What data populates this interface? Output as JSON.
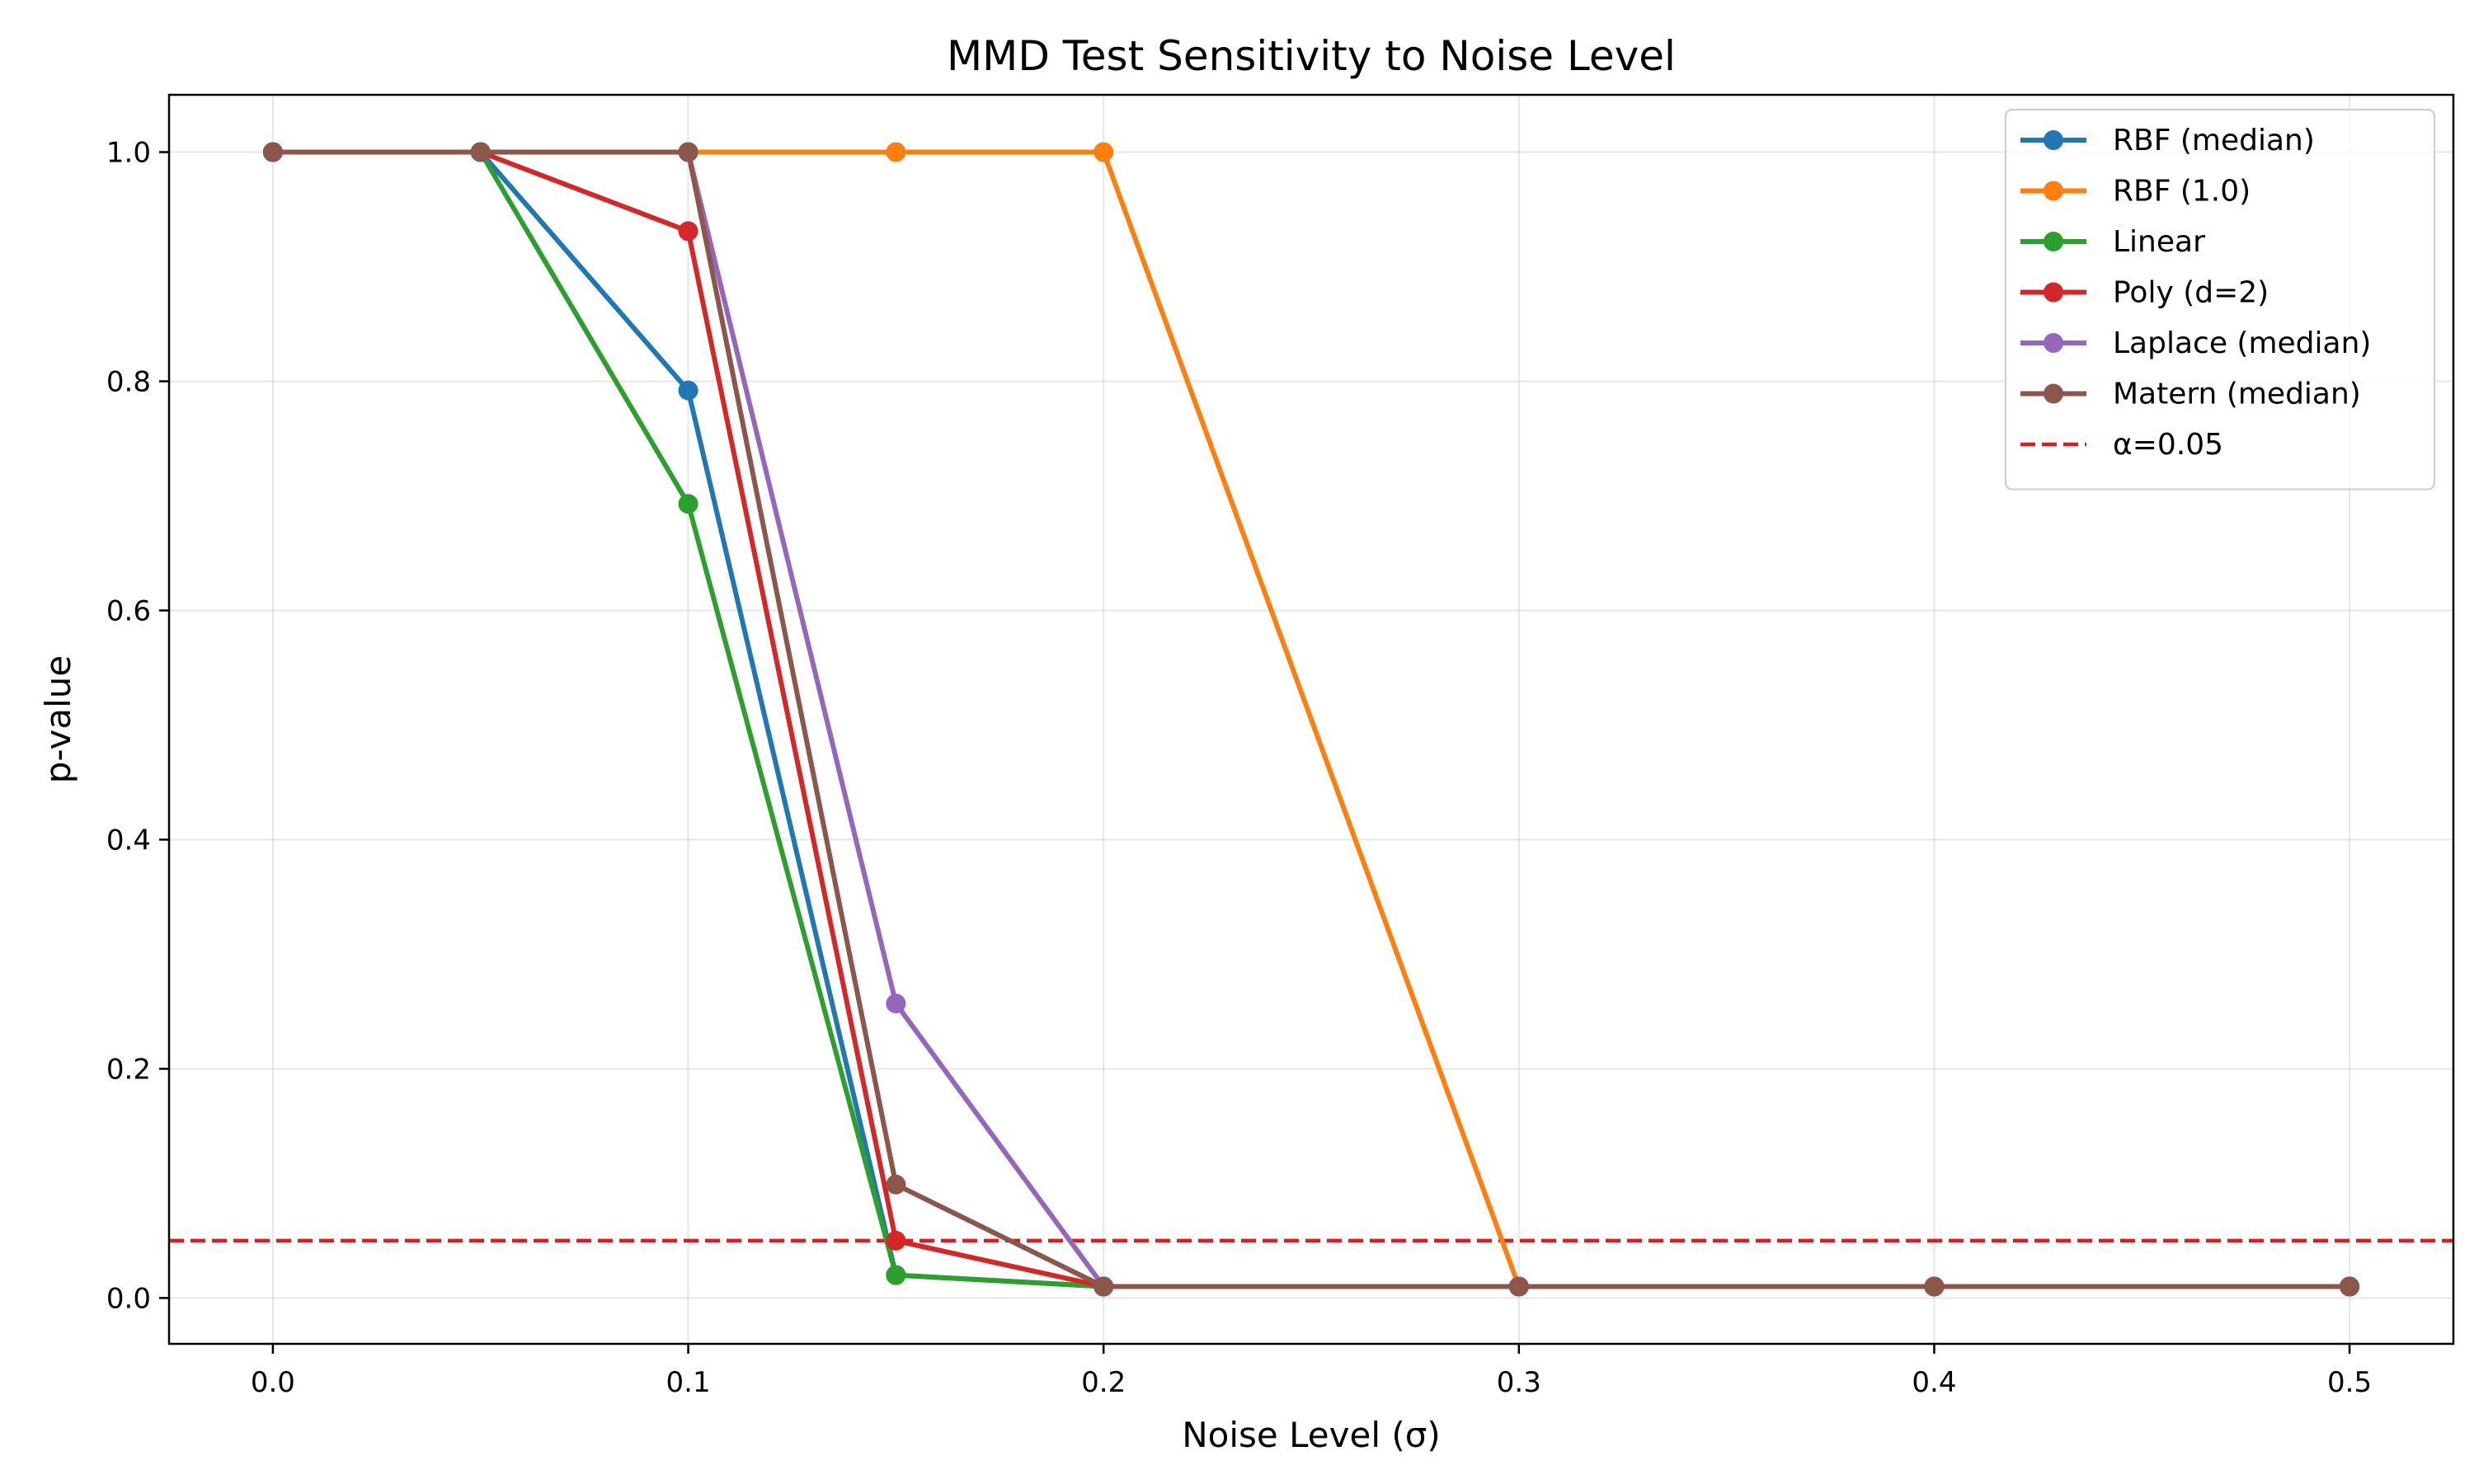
{
  "chart_data": {
    "type": "line",
    "title": "MMD Test Sensitivity to Noise Level",
    "xlabel": "Noise Level (σ)",
    "ylabel": "p-value",
    "xlim": [
      -0.025,
      0.525
    ],
    "ylim": [
      -0.04,
      1.05
    ],
    "xticks": [
      0.0,
      0.1,
      0.2,
      0.3,
      0.4,
      0.5
    ],
    "xtick_labels": [
      "0.0",
      "0.1",
      "0.2",
      "0.3",
      "0.4",
      "0.5"
    ],
    "yticks": [
      0.0,
      0.2,
      0.4,
      0.6,
      0.8,
      1.0
    ],
    "ytick_labels": [
      "0.0",
      "0.2",
      "0.4",
      "0.6",
      "0.8",
      "1.0"
    ],
    "grid": true,
    "legend_position": "top-right",
    "x": [
      0.0,
      0.05,
      0.1,
      0.15,
      0.2,
      0.3,
      0.4,
      0.5
    ],
    "series": [
      {
        "name": "RBF (median)",
        "color": "#1f77b4",
        "values": [
          1.0,
          1.0,
          0.792,
          0.02,
          0.01,
          0.01,
          0.01,
          0.01
        ]
      },
      {
        "name": "RBF (1.0)",
        "color": "#ff7f0e",
        "values": [
          1.0,
          1.0,
          1.0,
          1.0,
          1.0,
          0.01,
          0.01,
          0.01
        ]
      },
      {
        "name": "Linear",
        "color": "#2ca02c",
        "values": [
          1.0,
          1.0,
          0.693,
          0.02,
          0.01,
          0.01,
          0.01,
          0.01
        ]
      },
      {
        "name": "Poly (d=2)",
        "color": "#d62728",
        "values": [
          1.0,
          1.0,
          0.931,
          0.05,
          0.01,
          0.01,
          0.01,
          0.01
        ]
      },
      {
        "name": "Laplace (median)",
        "color": "#9467bd",
        "values": [
          1.0,
          1.0,
          1.0,
          0.257,
          0.01,
          0.01,
          0.01,
          0.01
        ]
      },
      {
        "name": "Matern (median)",
        "color": "#8c564b",
        "values": [
          1.0,
          1.0,
          1.0,
          0.099,
          0.01,
          0.01,
          0.01,
          0.01
        ]
      }
    ],
    "reference_line": {
      "name": "α=0.05",
      "y": 0.05,
      "color": "#e31a1c",
      "style": "dashed"
    }
  }
}
